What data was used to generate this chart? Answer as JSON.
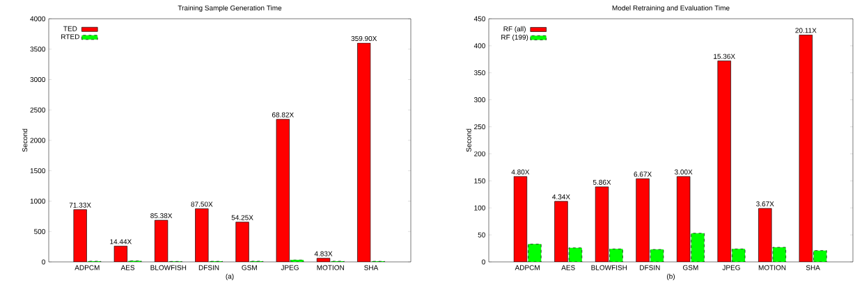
{
  "chart_data": [
    {
      "type": "bar",
      "title": "Training Sample Generation Time",
      "xlabel": "(a)",
      "ylabel": "Second",
      "categories": [
        "ADPCM",
        "AES",
        "BLOWFISH",
        "DFSIN",
        "GSM",
        "JPEG",
        "MOTION",
        "SHA"
      ],
      "series": [
        {
          "name": "TED",
          "color": "#ff0000",
          "line_style": "solid",
          "values": [
            860,
            260,
            685,
            875,
            655,
            2345,
            60,
            3600
          ]
        },
        {
          "name": "RTED",
          "color": "#00ff00",
          "line_style": "dashed",
          "values": [
            12,
            18,
            8,
            10,
            12,
            34,
            12,
            10
          ]
        }
      ],
      "ylim": [
        0,
        4000
      ],
      "yticks": [
        0,
        500,
        1000,
        1500,
        2000,
        2500,
        3000,
        3500,
        4000
      ],
      "grid": false,
      "legend": "top left",
      "annotations": [
        {
          "text": "71.33X",
          "x": "ADPCM",
          "y": 860
        },
        {
          "text": "14.44X",
          "x": "AES",
          "y": 260
        },
        {
          "text": "85.38X",
          "x": "BLOWFISH",
          "y": 685
        },
        {
          "text": "87.50X",
          "x": "DFSIN",
          "y": 875
        },
        {
          "text": "54.25X",
          "x": "GSM",
          "y": 655
        },
        {
          "text": "68.82X",
          "x": "JPEG",
          "y": 2345
        },
        {
          "text": "4.83X",
          "x": "MOTION",
          "y": 60
        },
        {
          "text": "359.90X",
          "x": "SHA",
          "y": 3600
        }
      ]
    },
    {
      "type": "bar",
      "title": "Model Retraining and Evaluation Time",
      "xlabel": "(b)",
      "ylabel": "Second",
      "categories": [
        "ADPCM",
        "AES",
        "BLOWFISH",
        "DFSIN",
        "GSM",
        "JPEG",
        "MOTION",
        "SHA"
      ],
      "series": [
        {
          "name": "RF (all)",
          "color": "#ff0000",
          "line_style": "solid",
          "values": [
            158,
            112,
            139,
            154,
            158,
            372,
            99,
            420
          ]
        },
        {
          "name": "RF (199)",
          "color": "#00ff00",
          "line_style": "dashed",
          "values": [
            33,
            26,
            24,
            23,
            53,
            24,
            27,
            21
          ]
        }
      ],
      "ylim": [
        0,
        450
      ],
      "yticks": [
        0,
        50,
        100,
        150,
        200,
        250,
        300,
        350,
        400,
        450
      ],
      "grid": false,
      "legend": "top left",
      "annotations": [
        {
          "text": "4.80X",
          "x": "ADPCM",
          "y": 158
        },
        {
          "text": "4.34X",
          "x": "AES",
          "y": 112
        },
        {
          "text": "5.86X",
          "x": "BLOWFISH",
          "y": 139
        },
        {
          "text": "6.67X",
          "x": "DFSIN",
          "y": 154
        },
        {
          "text": "3.00X",
          "x": "GSM",
          "y": 158
        },
        {
          "text": "15.36X",
          "x": "JPEG",
          "y": 372
        },
        {
          "text": "3.67X",
          "x": "MOTION",
          "y": 99
        },
        {
          "text": "20.11X",
          "x": "SHA",
          "y": 420
        }
      ]
    }
  ]
}
